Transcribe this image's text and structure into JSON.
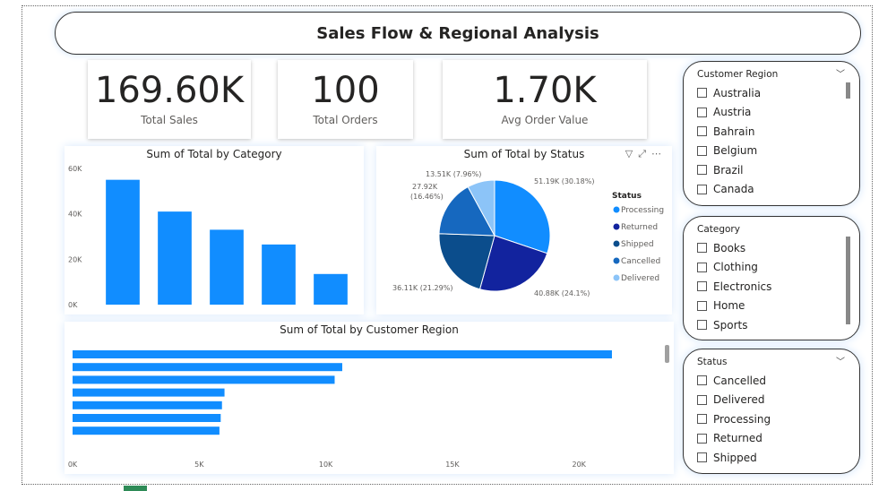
{
  "title": "Sales Flow & Regional Analysis",
  "kpis": [
    {
      "value": "169.60K",
      "label": "Total Sales"
    },
    {
      "value": "100",
      "label": "Total Orders"
    },
    {
      "value": "1.70K",
      "label": "Avg Order Value"
    }
  ],
  "slicers": {
    "region": {
      "title": "Customer Region",
      "items": [
        "Australia",
        "Austria",
        "Bahrain",
        "Belgium",
        "Brazil",
        "Canada"
      ]
    },
    "category": {
      "title": "Category",
      "items": [
        "Books",
        "Clothing",
        "Electronics",
        "Home",
        "Sports"
      ]
    },
    "status": {
      "title": "Status",
      "items": [
        "Cancelled",
        "Delivered",
        "Processing",
        "Returned",
        "Shipped"
      ]
    }
  },
  "icons": {
    "chevron": "chevron-down-icon",
    "filter": "filter-icon",
    "focus": "focus-mode-icon",
    "more": "more-options-icon"
  },
  "chart_data": [
    {
      "type": "bar",
      "title": "Sum of Total by Category",
      "categories": [
        "",
        "",
        "",
        "",
        ""
      ],
      "values": [
        55000,
        41000,
        33000,
        26500,
        13500
      ],
      "yticks": [
        "0K",
        "20K",
        "40K",
        "60K"
      ],
      "ylim": [
        0,
        60000
      ],
      "color": "#118DFF"
    },
    {
      "type": "pie",
      "title": "Sum of Total by Status",
      "legend_title": "Status",
      "legend_position": "right",
      "slices": [
        {
          "name": "Processing",
          "value": 51190,
          "label": "51.19K (30.18%)",
          "color": "#118DFF"
        },
        {
          "name": "Returned",
          "value": 40880,
          "label": "40.88K (24.1%)",
          "color": "#12239E"
        },
        {
          "name": "Shipped",
          "value": 36110,
          "label": "36.11K (21.29%)",
          "color": "#0B4D8C"
        },
        {
          "name": "Cancelled",
          "value": 27920,
          "label": "27.92K (16.46%)",
          "color": "#1668BF"
        },
        {
          "name": "Delivered",
          "value": 13510,
          "label": "13.51K (7.96%)",
          "color": "#8CC4F8"
        }
      ]
    },
    {
      "type": "bar",
      "orientation": "horizontal",
      "title": "Sum of Total by Customer Region",
      "values": [
        21300,
        10650,
        10350,
        6000,
        5900,
        5850,
        5800
      ],
      "xticks": [
        "0K",
        "5K",
        "10K",
        "15K",
        "20K"
      ],
      "xlim": [
        0,
        23000
      ],
      "color": "#118DFF"
    }
  ]
}
